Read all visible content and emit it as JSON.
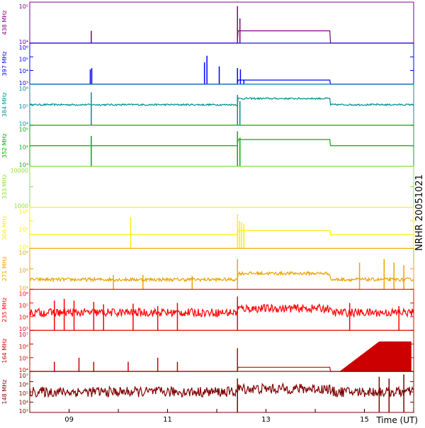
{
  "side_label": "NRHR 20051021",
  "chart_data": {
    "type": "line",
    "xlabel": "Time (UT)",
    "x_range": [
      8.2,
      16.0
    ],
    "x_ticks": [
      9,
      10,
      11,
      12,
      13,
      14,
      15,
      16
    ],
    "x_tick_labels": [
      "09",
      "11",
      "13",
      "15"
    ],
    "panels": [
      {
        "name": "438 MHz",
        "color": "#800080",
        "yscale": "log",
        "ylim": [
          10000,
          100000
        ],
        "ytick_labels": [
          "10⁵",
          "10⁴"
        ],
        "baseline": 10000,
        "noise": 0.0,
        "fill": false,
        "spikes": [
          [
            9.45,
            20000
          ],
          [
            12.42,
            80000
          ],
          [
            12.47,
            40000
          ]
        ],
        "bursts": []
      },
      {
        "name": "397 MHz",
        "color": "#0000ff",
        "yscale": "log",
        "ylim": [
          1000,
          1000000
        ],
        "ytick_labels": [
          "10⁶",
          "10⁵",
          "10⁴",
          "10³"
        ],
        "baseline": 1000,
        "noise": 0.0,
        "fill": false,
        "spikes": [
          [
            9.43,
            12000
          ],
          [
            9.46,
            15000
          ],
          [
            11.75,
            40000
          ],
          [
            11.8,
            120000
          ],
          [
            12.05,
            20000
          ],
          [
            12.42,
            15000
          ],
          [
            12.48,
            12000
          ],
          [
            12.55,
            2000
          ]
        ],
        "bursts": []
      },
      {
        "name": "384 MHz",
        "color": "#009090",
        "yscale": "log",
        "ylim": [
          10000,
          1000000
        ],
        "ytick_labels": [
          "10⁶",
          "10⁵",
          "10⁴"
        ],
        "baseline": 100000,
        "noise": 0.04,
        "fill": false,
        "spikes": [
          [
            9.45,
            400000
          ],
          [
            12.42,
            300000
          ],
          [
            12.47,
            150000
          ]
        ],
        "bursts": []
      },
      {
        "name": "352 MHz",
        "color": "#00b000",
        "yscale": "log",
        "ylim": [
          1000,
          100000
        ],
        "ytick_labels": [
          "10⁵",
          "10⁴",
          "10³"
        ],
        "baseline": 10000,
        "noise": 0.0,
        "fill": false,
        "spikes": [
          [
            9.45,
            30000
          ],
          [
            12.42,
            50000
          ],
          [
            12.47,
            25000
          ]
        ],
        "bursts": []
      },
      {
        "name": "333 MHz",
        "color": "#90e030",
        "yscale": "log",
        "ylim": [
          100,
          10000
        ],
        "ytick_labels": [
          "10000",
          "1000"
        ],
        "baseline": null,
        "noise": 0.0,
        "fill": false,
        "spikes": [],
        "bursts": []
      },
      {
        "name": "306 MHz",
        "color": "#ffee00",
        "yscale": "log",
        "ylim": [
          1000,
          1000000
        ],
        "ytick_labels": [
          "10⁶",
          "10⁵",
          "10⁴"
        ],
        "baseline": 10000,
        "noise": 0.0,
        "fill": false,
        "spikes": [
          [
            10.25,
            200000
          ],
          [
            12.42,
            300000
          ],
          [
            12.46,
            100000
          ],
          [
            12.5,
            80000
          ],
          [
            12.55,
            60000
          ]
        ],
        "bursts": []
      },
      {
        "name": "271 MHz",
        "color": "#f0a000",
        "yscale": "log",
        "ylim": [
          10000,
          1000000
        ],
        "ytick_labels": [
          "10⁶",
          "10⁵",
          "10⁴"
        ],
        "baseline": 30000,
        "noise": 0.08,
        "fill": false,
        "spikes": [
          [
            9.9,
            50000
          ],
          [
            10.5,
            50000
          ],
          [
            11.5,
            45000
          ],
          [
            12.42,
            300000
          ],
          [
            14.9,
            200000
          ],
          [
            15.4,
            300000
          ],
          [
            15.6,
            200000
          ],
          [
            15.8,
            150000
          ]
        ],
        "bursts": []
      },
      {
        "name": "235 MHz",
        "color": "#ff0000",
        "yscale": "log",
        "ylim": [
          1000,
          1000000
        ],
        "ytick_labels": [
          "10⁶",
          "10⁵",
          "10⁴",
          "10³"
        ],
        "baseline": 20000,
        "noise": 0.3,
        "fill": false,
        "spikes": [
          [
            8.7,
            150000
          ],
          [
            8.9,
            200000
          ],
          [
            9.1,
            150000
          ],
          [
            9.5,
            120000
          ],
          [
            9.7,
            80000
          ],
          [
            10.3,
            90000
          ],
          [
            10.8,
            60000
          ],
          [
            11.2,
            100000
          ],
          [
            12.42,
            300000
          ],
          [
            14.7,
            100000
          ],
          [
            15.7,
            60000
          ]
        ],
        "bursts": []
      },
      {
        "name": "164 MHz",
        "color": "#cc0000",
        "yscale": "log",
        "ylim": [
          10000,
          10000000
        ],
        "ytick_labels": [
          "10⁷",
          "10⁶",
          "10⁵",
          "10⁴"
        ],
        "baseline": 10000,
        "noise": 0.0,
        "fill": true,
        "spikes": [
          [
            8.7,
            50000
          ],
          [
            9.2,
            100000
          ],
          [
            9.5,
            50000
          ],
          [
            10.2,
            50000
          ],
          [
            10.8,
            100000
          ],
          [
            11.2,
            50000
          ],
          [
            12.42,
            500000
          ]
        ],
        "bursts": [
          [
            14.5,
            15.95,
            1500000
          ]
        ]
      },
      {
        "name": "148 MHz",
        "color": "#800000",
        "yscale": "log",
        "ylim": [
          1000,
          10000000
        ],
        "ytick_labels": [
          "10⁷",
          "10⁶",
          "10⁵",
          "10⁴",
          "10³"
        ],
        "baseline": 100000,
        "noise": 0.5,
        "fill": false,
        "spikes": [
          [
            12.42,
            2000000
          ],
          [
            15.3,
            3000000
          ],
          [
            15.5,
            2000000
          ],
          [
            15.8,
            5000000
          ]
        ],
        "bursts": []
      }
    ]
  }
}
